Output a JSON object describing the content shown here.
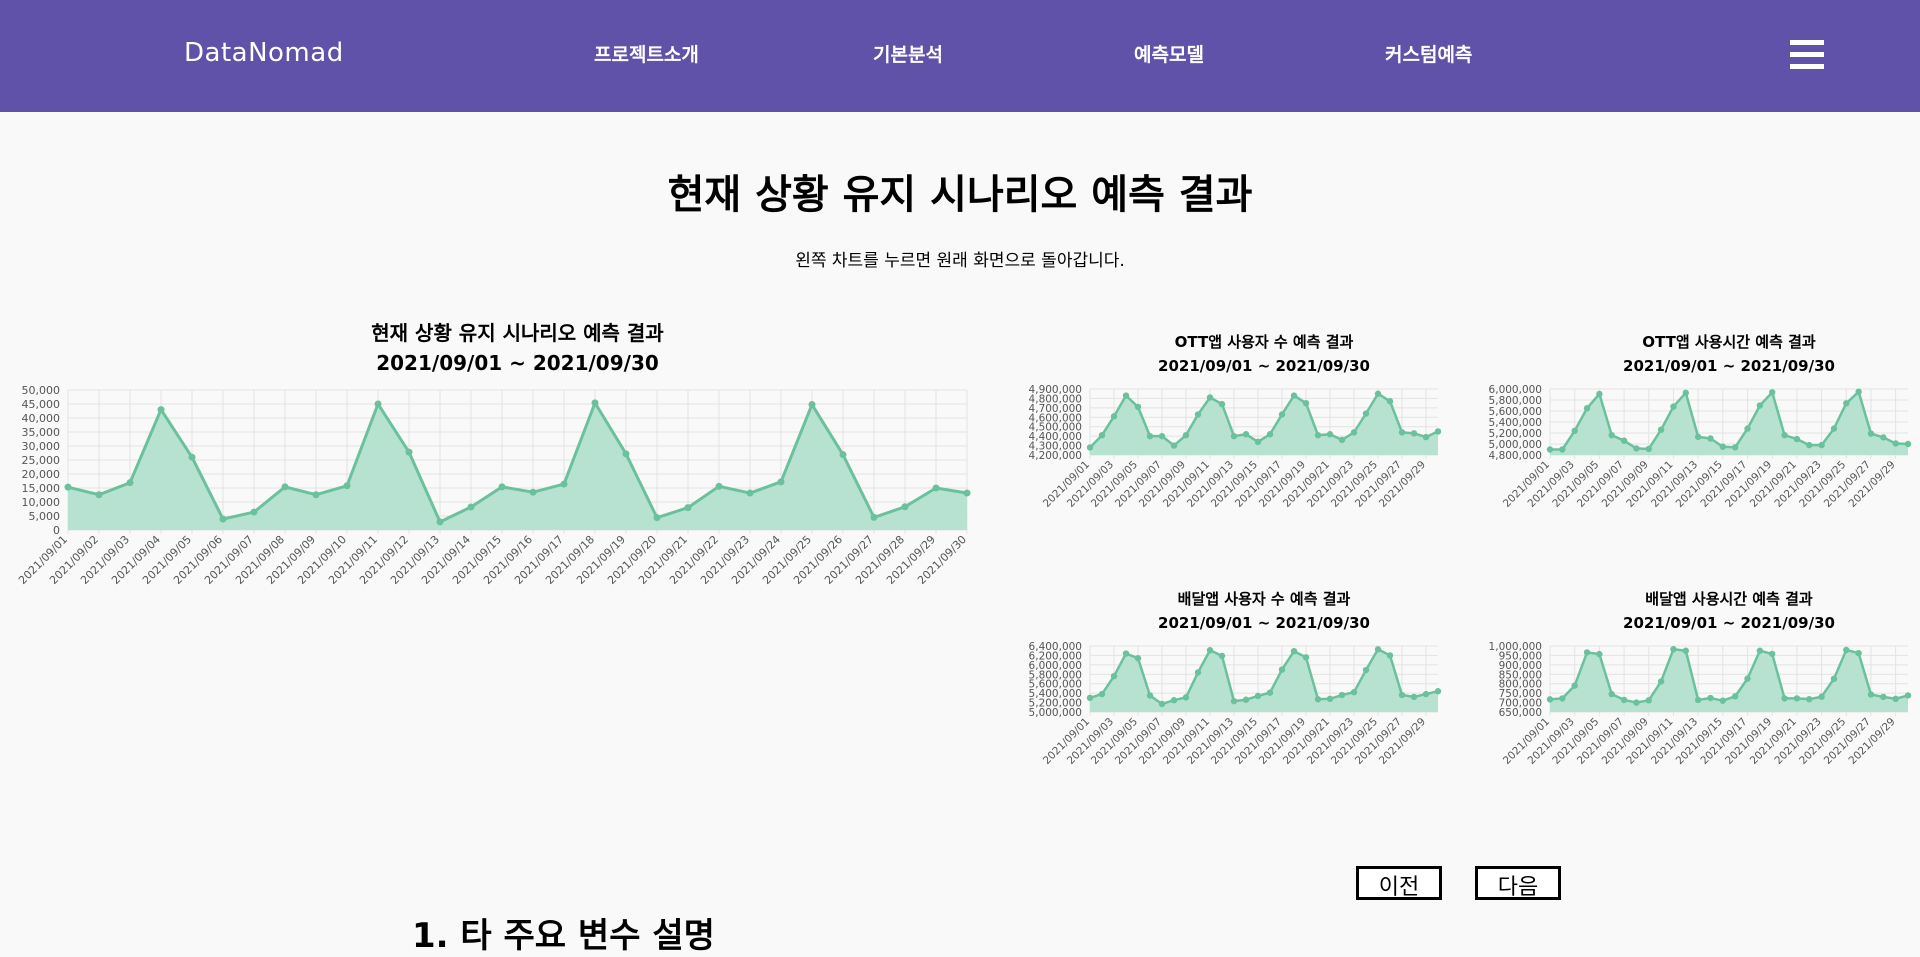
{
  "nav": {
    "logo": "DataNomad",
    "items": [
      "프로젝트소개",
      "기본분석",
      "예측모델",
      "커스텀예측"
    ]
  },
  "page": {
    "title": "현재 상황 유지 시나리오 예측 결과",
    "hint": "왼쪽 차트를 누르면 원래 화면으로 돌아갑니다.",
    "section_title": "1. 타 주요 변수 설명"
  },
  "buttons": {
    "prev": "이전",
    "next": "다음"
  },
  "colors": {
    "nav": "#6052a8",
    "line": "#6bc19c",
    "fill": "#b3e0cf"
  },
  "chart_data": [
    {
      "type": "area",
      "title": "현재 상황 유지 시나리오 예측 결과",
      "subtitle": "2021/09/01 ~ 2021/09/30",
      "categories": [
        "2021/09/01",
        "2021/09/02",
        "2021/09/03",
        "2021/09/04",
        "2021/09/05",
        "2021/09/06",
        "2021/09/07",
        "2021/09/08",
        "2021/09/09",
        "2021/09/10",
        "2021/09/11",
        "2021/09/12",
        "2021/09/13",
        "2021/09/14",
        "2021/09/15",
        "2021/09/16",
        "2021/09/17",
        "2021/09/18",
        "2021/09/19",
        "2021/09/20",
        "2021/09/21",
        "2021/09/22",
        "2021/09/23",
        "2021/09/24",
        "2021/09/25",
        "2021/09/26",
        "2021/09/27",
        "2021/09/28",
        "2021/09/29",
        "2021/09/30"
      ],
      "values": [
        15300,
        12600,
        16900,
        43000,
        26000,
        3900,
        6400,
        15400,
        12600,
        15800,
        45000,
        27800,
        2900,
        8200,
        15400,
        13500,
        16400,
        45400,
        27200,
        4400,
        8000,
        15600,
        13200,
        17200,
        44800,
        26900,
        4500,
        8300,
        15000,
        13200
      ],
      "ylim": [
        0,
        50000
      ],
      "yticks": [
        0,
        5000,
        10000,
        15000,
        20000,
        25000,
        30000,
        35000,
        40000,
        45000,
        50000
      ],
      "ytick_labels": [
        "0",
        "5,000",
        "10,000",
        "15,000",
        "20,000",
        "25,000",
        "30,000",
        "35,000",
        "40,000",
        "45,000",
        "50,000"
      ],
      "xtick_labels": [
        "2021/09/01",
        "2021/09/02",
        "2021/09/03",
        "2021/09/04",
        "2021/09/05",
        "2021/09/06",
        "2021/09/07",
        "2021/09/08",
        "2021/09/09",
        "2021/09/10",
        "2021/09/11",
        "2021/09/12",
        "2021/09/13",
        "2021/09/14",
        "2021/09/15",
        "2021/09/16",
        "2021/09/17",
        "2021/09/18",
        "2021/09/19",
        "2021/09/20",
        "2021/09/21",
        "2021/09/22",
        "2021/09/23",
        "2021/09/24",
        "2021/09/25",
        "2021/09/26",
        "2021/09/27",
        "2021/09/28",
        "2021/09/29",
        "2021/09/30"
      ]
    },
    {
      "type": "area",
      "title": "OTT앱 사용자 수 예측 결과",
      "subtitle": "2021/09/01 ~ 2021/09/30",
      "categories": [
        "2021/09/01",
        "2021/09/02",
        "2021/09/03",
        "2021/09/04",
        "2021/09/05",
        "2021/09/06",
        "2021/09/07",
        "2021/09/08",
        "2021/09/09",
        "2021/09/10",
        "2021/09/11",
        "2021/09/12",
        "2021/09/13",
        "2021/09/14",
        "2021/09/15",
        "2021/09/16",
        "2021/09/17",
        "2021/09/18",
        "2021/09/19",
        "2021/09/20",
        "2021/09/21",
        "2021/09/22",
        "2021/09/23",
        "2021/09/24",
        "2021/09/25",
        "2021/09/26",
        "2021/09/27",
        "2021/09/28",
        "2021/09/29",
        "2021/09/30"
      ],
      "values": [
        4280000,
        4410000,
        4610000,
        4830000,
        4710000,
        4400000,
        4400000,
        4300000,
        4410000,
        4630000,
        4810000,
        4740000,
        4400000,
        4420000,
        4340000,
        4420000,
        4630000,
        4830000,
        4750000,
        4410000,
        4420000,
        4360000,
        4440000,
        4640000,
        4850000,
        4770000,
        4440000,
        4430000,
        4390000,
        4450000
      ],
      "ylim": [
        4200000,
        4900000
      ],
      "yticks": [
        4200000,
        4300000,
        4400000,
        4500000,
        4600000,
        4700000,
        4800000,
        4900000
      ],
      "ytick_labels": [
        "4,200,000",
        "4,300,000",
        "4,400,000",
        "4,500,000",
        "4,600,000",
        "4,700,000",
        "4,800,000",
        "4,900,000"
      ],
      "xtick_labels": [
        "2021/09/01",
        "2021/09/03",
        "2021/09/05",
        "2021/09/07",
        "2021/09/09",
        "2021/09/11",
        "2021/09/13",
        "2021/09/15",
        "2021/09/17",
        "2021/09/19",
        "2021/09/21",
        "2021/09/23",
        "2021/09/25",
        "2021/09/27",
        "2021/09/29"
      ]
    },
    {
      "type": "area",
      "title": "OTT앱 사용시간 예측 결과",
      "subtitle": "2021/09/01 ~ 2021/09/30",
      "categories": [
        "2021/09/01",
        "2021/09/02",
        "2021/09/03",
        "2021/09/04",
        "2021/09/05",
        "2021/09/06",
        "2021/09/07",
        "2021/09/08",
        "2021/09/09",
        "2021/09/10",
        "2021/09/11",
        "2021/09/12",
        "2021/09/13",
        "2021/09/14",
        "2021/09/15",
        "2021/09/16",
        "2021/09/17",
        "2021/09/18",
        "2021/09/19",
        "2021/09/20",
        "2021/09/21",
        "2021/09/22",
        "2021/09/23",
        "2021/09/24",
        "2021/09/25",
        "2021/09/26",
        "2021/09/27",
        "2021/09/28",
        "2021/09/29",
        "2021/09/30"
      ],
      "values": [
        4900000,
        4900000,
        5240000,
        5650000,
        5910000,
        5160000,
        5060000,
        4920000,
        4910000,
        5260000,
        5680000,
        5930000,
        5130000,
        5100000,
        4950000,
        4940000,
        5280000,
        5700000,
        5940000,
        5160000,
        5090000,
        4980000,
        4980000,
        5280000,
        5740000,
        5950000,
        5190000,
        5120000,
        5010000,
        5000000
      ],
      "ylim": [
        4800000,
        6000000
      ],
      "yticks": [
        4800000,
        5000000,
        5200000,
        5400000,
        5600000,
        5800000,
        6000000
      ],
      "ytick_labels": [
        "4,800,000",
        "5,000,000",
        "5,200,000",
        "5,400,000",
        "5,600,000",
        "5,800,000",
        "6,000,000"
      ],
      "xtick_labels": [
        "2021/09/01",
        "2021/09/03",
        "2021/09/05",
        "2021/09/07",
        "2021/09/09",
        "2021/09/11",
        "2021/09/13",
        "2021/09/15",
        "2021/09/17",
        "2021/09/19",
        "2021/09/21",
        "2021/09/23",
        "2021/09/25",
        "2021/09/27",
        "2021/09/29"
      ]
    },
    {
      "type": "area",
      "title": "배달앱 사용자 수 예측 결과",
      "subtitle": "2021/09/01 ~ 2021/09/30",
      "categories": [
        "2021/09/01",
        "2021/09/02",
        "2021/09/03",
        "2021/09/04",
        "2021/09/05",
        "2021/09/06",
        "2021/09/07",
        "2021/09/08",
        "2021/09/09",
        "2021/09/10",
        "2021/09/11",
        "2021/09/12",
        "2021/09/13",
        "2021/09/14",
        "2021/09/15",
        "2021/09/16",
        "2021/09/17",
        "2021/09/18",
        "2021/09/19",
        "2021/09/20",
        "2021/09/21",
        "2021/09/22",
        "2021/09/23",
        "2021/09/24",
        "2021/09/25",
        "2021/09/26",
        "2021/09/27",
        "2021/09/28",
        "2021/09/29",
        "2021/09/30"
      ],
      "values": [
        5300000,
        5380000,
        5760000,
        6240000,
        6140000,
        5350000,
        5170000,
        5250000,
        5310000,
        5840000,
        6310000,
        6190000,
        5230000,
        5260000,
        5340000,
        5410000,
        5900000,
        6290000,
        6160000,
        5270000,
        5280000,
        5360000,
        5420000,
        5890000,
        6330000,
        6200000,
        5360000,
        5320000,
        5380000,
        5440000
      ],
      "ylim": [
        5000000,
        6400000
      ],
      "yticks": [
        5000000,
        5200000,
        5400000,
        5600000,
        5800000,
        6000000,
        6200000,
        6400000
      ],
      "ytick_labels": [
        "5,000,000",
        "5,200,000",
        "5,400,000",
        "5,600,000",
        "5,800,000",
        "6,000,000",
        "6,200,000",
        "6,400,000"
      ],
      "xtick_labels": [
        "2021/09/01",
        "2021/09/03",
        "2021/09/05",
        "2021/09/07",
        "2021/09/09",
        "2021/09/11",
        "2021/09/13",
        "2021/09/15",
        "2021/09/17",
        "2021/09/19",
        "2021/09/21",
        "2021/09/23",
        "2021/09/25",
        "2021/09/27",
        "2021/09/29"
      ]
    },
    {
      "type": "area",
      "title": "배달앱 사용시간 예측 결과",
      "subtitle": "2021/09/01 ~ 2021/09/30",
      "categories": [
        "2021/09/01",
        "2021/09/02",
        "2021/09/03",
        "2021/09/04",
        "2021/09/05",
        "2021/09/06",
        "2021/09/07",
        "2021/09/08",
        "2021/09/09",
        "2021/09/10",
        "2021/09/11",
        "2021/09/12",
        "2021/09/13",
        "2021/09/14",
        "2021/09/15",
        "2021/09/16",
        "2021/09/17",
        "2021/09/18",
        "2021/09/19",
        "2021/09/20",
        "2021/09/21",
        "2021/09/22",
        "2021/09/23",
        "2021/09/24",
        "2021/09/25",
        "2021/09/26",
        "2021/09/27",
        "2021/09/28",
        "2021/09/29",
        "2021/09/30"
      ],
      "values": [
        717000,
        722000,
        790000,
        966000,
        957000,
        745000,
        714000,
        700000,
        712000,
        812000,
        983000,
        975000,
        714000,
        724000,
        710000,
        733000,
        827000,
        975000,
        958000,
        722000,
        722000,
        718000,
        731000,
        826000,
        979000,
        962000,
        743000,
        730000,
        720000,
        738000
      ],
      "ylim": [
        650000,
        1000000
      ],
      "yticks": [
        650000,
        700000,
        750000,
        800000,
        850000,
        900000,
        950000,
        1000000
      ],
      "ytick_labels": [
        "650,000",
        "700,000",
        "750,000",
        "800,000",
        "850,000",
        "900,000",
        "950,000",
        "1,000,000"
      ],
      "xtick_labels": [
        "2021/09/01",
        "2021/09/03",
        "2021/09/05",
        "2021/09/07",
        "2021/09/09",
        "2021/09/11",
        "2021/09/13",
        "2021/09/15",
        "2021/09/17",
        "2021/09/19",
        "2021/09/21",
        "2021/09/23",
        "2021/09/25",
        "2021/09/27",
        "2021/09/29"
      ]
    }
  ]
}
